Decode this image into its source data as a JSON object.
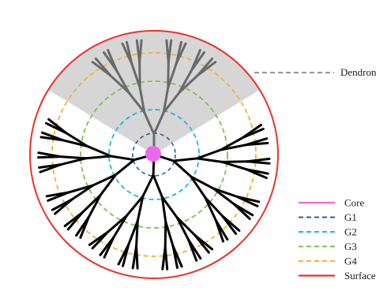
{
  "colors": {
    "core": "#ee66ee",
    "g1": "#2f5f8f",
    "g2": "#22b5e0",
    "g3": "#7bc44a",
    "g4": "#f2b22e",
    "surface": "#e8332b",
    "dendron_shade": "#d6d6d6",
    "branch_gray": "#6a6a6a",
    "branch_black": "#000000"
  },
  "labels": {
    "dendron": "Dendron"
  },
  "legend": {
    "items": [
      {
        "key": "core",
        "label": "Core"
      },
      {
        "key": "g1",
        "label": "G1"
      },
      {
        "key": "g2",
        "label": "G2"
      },
      {
        "key": "g3",
        "label": "G3"
      },
      {
        "key": "g4",
        "label": "G4"
      },
      {
        "key": "surface",
        "label": "Surface"
      }
    ]
  }
}
